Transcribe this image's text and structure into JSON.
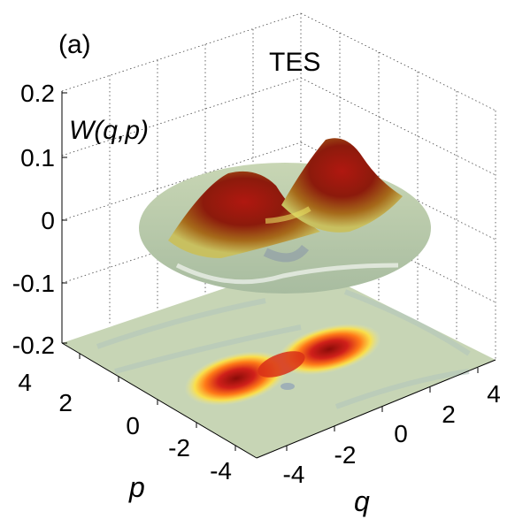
{
  "panel_label": "(a)",
  "chart_data": {
    "type": "surface",
    "title": "TES",
    "zlabel": "W(q,p)",
    "xlabel": "q",
    "ylabel": "p",
    "xlim": [
      -5,
      5
    ],
    "ylim": [
      -5,
      5
    ],
    "zlim": [
      -0.2,
      0.2
    ],
    "xticks": [
      "-4",
      "-2",
      "0",
      "2",
      "4"
    ],
    "yticks": [
      "4",
      "2",
      "0",
      "-2",
      "-4"
    ],
    "zticks": [
      "0.2",
      "0.1",
      "0",
      "-0.1",
      "-0.2"
    ],
    "grid": true,
    "colormap": [
      "#b0c4a8",
      "#e6e79a",
      "#ffe25a",
      "#ff9a1e",
      "#e02018",
      "#8a0c08"
    ],
    "surface_peaks": [
      {
        "q": -1.8,
        "p": 0.6,
        "W": 0.08
      },
      {
        "q": 1.8,
        "p": -0.6,
        "W": 0.13
      }
    ],
    "projection": "filled contour of W(q,p) at W = -0.2"
  }
}
